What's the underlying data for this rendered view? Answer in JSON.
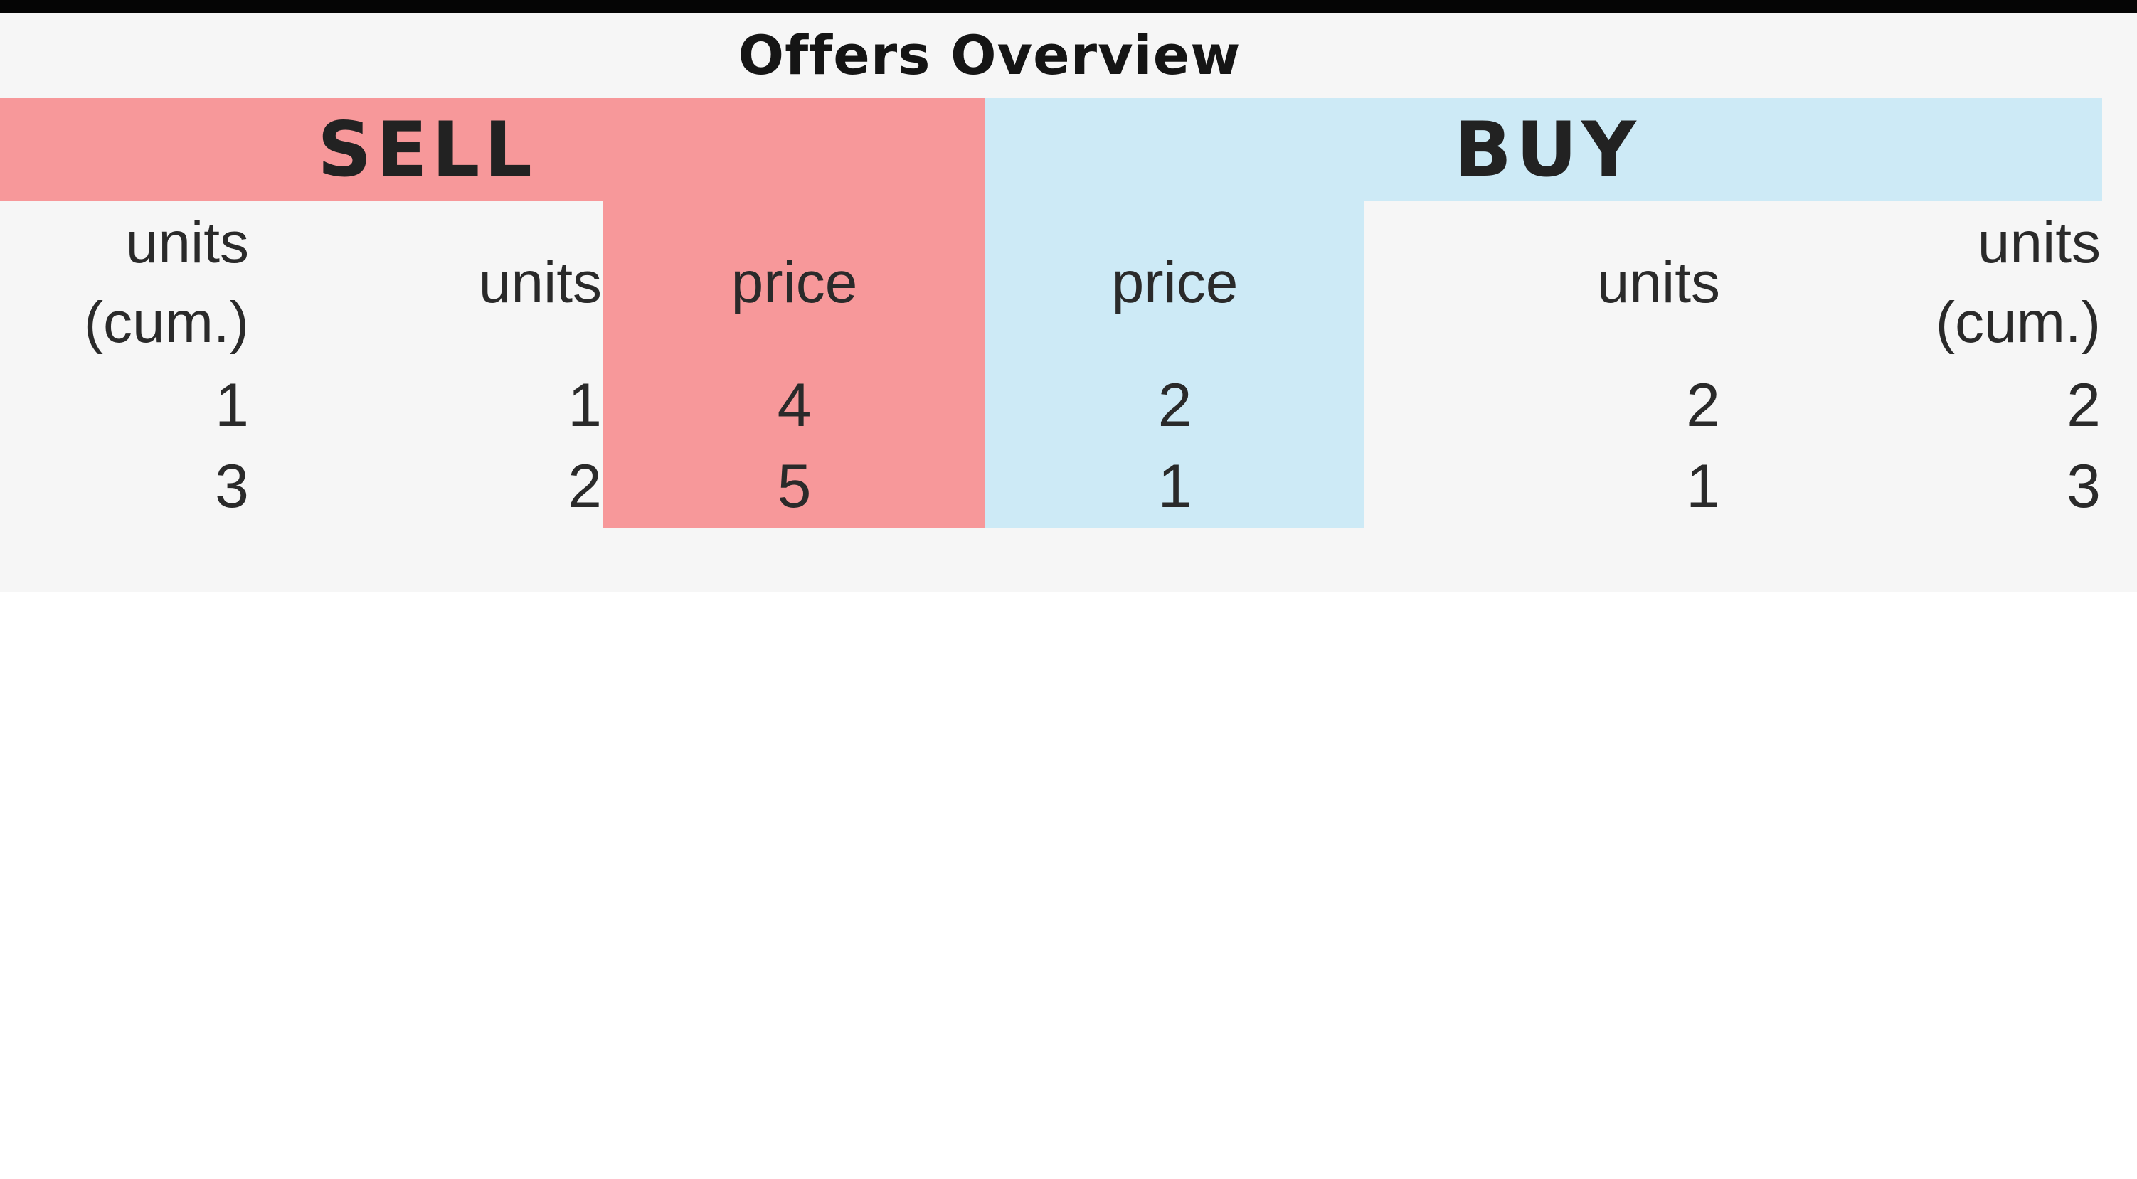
{
  "title": "Offers Overview",
  "colors": {
    "sell": "#f7989a",
    "buy": "#cdeaf6",
    "panel": "#f6f6f6",
    "topbar": "#050505"
  },
  "sell": {
    "label": "SELL",
    "headers": {
      "units_cum_line1": "units",
      "units_cum_line2": "(cum.)",
      "units": "units",
      "price": "price"
    },
    "rows": [
      {
        "units_cum": "1",
        "units": "1",
        "price": "4"
      },
      {
        "units_cum": "3",
        "units": "2",
        "price": "5"
      }
    ]
  },
  "buy": {
    "label": "BUY",
    "headers": {
      "price": "price",
      "units": "units",
      "units_cum_line1": "units",
      "units_cum_line2": "(cum.)"
    },
    "rows": [
      {
        "price": "2",
        "units": "2",
        "units_cum": "2"
      },
      {
        "price": "1",
        "units": "1",
        "units_cum": "3"
      }
    ]
  }
}
